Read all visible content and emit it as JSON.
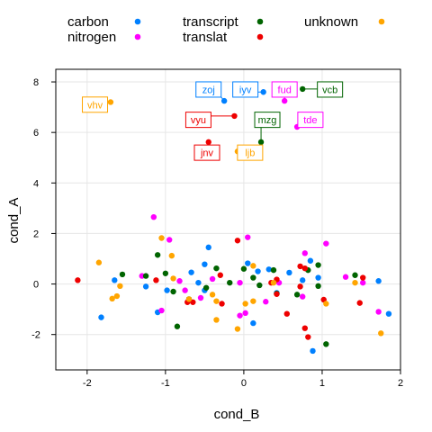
{
  "chart_data": {
    "type": "scatter",
    "xlabel": "cond_B",
    "ylabel": "cond_A",
    "xlim": [
      -2.4,
      2.0
    ],
    "ylim": [
      -3.4,
      8.5
    ],
    "x_ticks": [
      -2,
      -1,
      0,
      1,
      2
    ],
    "y_ticks": [
      -2,
      0,
      2,
      4,
      6,
      8
    ],
    "grid": true,
    "legend_position": "top",
    "series": [
      {
        "name": "carbon",
        "color": "#0080ff",
        "points": [
          [
            -1.82,
            -1.32
          ],
          [
            -1.25,
            -0.1
          ],
          [
            -1.1,
            -1.12
          ],
          [
            -0.98,
            -0.25
          ],
          [
            -0.67,
            0.46
          ],
          [
            -0.5,
            0.78
          ],
          [
            -0.45,
            1.45
          ],
          [
            -0.5,
            -0.25
          ],
          [
            -0.58,
            0.05
          ],
          [
            0.05,
            0.82
          ],
          [
            0.12,
            -1.55
          ],
          [
            0.18,
            0.5
          ],
          [
            0.32,
            0.58
          ],
          [
            0.42,
            -0.35
          ],
          [
            0.58,
            0.45
          ],
          [
            0.75,
            0.15
          ],
          [
            0.85,
            0.92
          ],
          [
            0.88,
            -2.65
          ],
          [
            0.95,
            0.25
          ],
          [
            1.72,
            0.12
          ],
          [
            1.85,
            -1.18
          ],
          [
            -1.65,
            0.15
          ],
          [
            -0.25,
            7.25
          ],
          [
            0.25,
            7.6
          ]
        ]
      },
      {
        "name": "nitrogen",
        "color": "#ff00ff",
        "points": [
          [
            -1.15,
            2.65
          ],
          [
            -1.3,
            0.32
          ],
          [
            -1.05,
            -1.05
          ],
          [
            -0.95,
            1.75
          ],
          [
            -0.82,
            0.12
          ],
          [
            -0.75,
            -0.25
          ],
          [
            -0.55,
            -0.55
          ],
          [
            -0.4,
            0.2
          ],
          [
            -0.05,
            -1.25
          ],
          [
            0.02,
            -1.15
          ],
          [
            0.05,
            1.85
          ],
          [
            -0.05,
            0.05
          ],
          [
            0.28,
            -0.7
          ],
          [
            0.45,
            0.05
          ],
          [
            0.78,
            1.22
          ],
          [
            0.75,
            -0.5
          ],
          [
            1.05,
            1.6
          ],
          [
            1.3,
            0.28
          ],
          [
            1.52,
            0.05
          ],
          [
            1.72,
            -1.1
          ],
          [
            0.52,
            7.25
          ],
          [
            0.68,
            6.22
          ]
        ]
      },
      {
        "name": "transcript",
        "color": "#006400",
        "points": [
          [
            -1.55,
            0.38
          ],
          [
            -1.25,
            0.32
          ],
          [
            -1.1,
            1.15
          ],
          [
            -1.0,
            0.42
          ],
          [
            -0.9,
            -0.3
          ],
          [
            -0.85,
            -1.68
          ],
          [
            -0.7,
            -0.6
          ],
          [
            -0.48,
            -0.15
          ],
          [
            -0.35,
            0.62
          ],
          [
            -0.18,
            0.05
          ],
          [
            0.0,
            0.6
          ],
          [
            0.12,
            0.25
          ],
          [
            0.2,
            -0.05
          ],
          [
            0.38,
            0.55
          ],
          [
            0.42,
            -0.38
          ],
          [
            0.68,
            -0.42
          ],
          [
            0.82,
            0.55
          ],
          [
            0.95,
            0.75
          ],
          [
            0.95,
            -0.08
          ],
          [
            1.05,
            -2.38
          ],
          [
            1.42,
            0.35
          ],
          [
            0.22,
            5.62
          ],
          [
            0.75,
            7.72
          ]
        ]
      },
      {
        "name": "translat",
        "color": "#ee0000",
        "points": [
          [
            -2.12,
            0.15
          ],
          [
            -1.12,
            0.15
          ],
          [
            -0.72,
            -0.72
          ],
          [
            -0.65,
            -0.72
          ],
          [
            -0.3,
            0.35
          ],
          [
            -0.28,
            -0.78
          ],
          [
            -0.08,
            1.72
          ],
          [
            0.35,
            0.05
          ],
          [
            0.42,
            0.18
          ],
          [
            0.42,
            -0.4
          ],
          [
            0.55,
            -1.18
          ],
          [
            0.72,
            -0.1
          ],
          [
            0.72,
            0.7
          ],
          [
            0.78,
            0.62
          ],
          [
            0.78,
            -1.75
          ],
          [
            0.82,
            -2.1
          ],
          [
            1.02,
            -0.62
          ],
          [
            1.48,
            -0.75
          ],
          [
            1.52,
            0.25
          ],
          [
            -0.45,
            5.62
          ],
          [
            -0.12,
            6.65
          ]
        ]
      },
      {
        "name": "unknown",
        "color": "#ffa500",
        "points": [
          [
            -1.85,
            0.85
          ],
          [
            -1.68,
            -0.58
          ],
          [
            -1.62,
            -0.48
          ],
          [
            -1.58,
            -0.08
          ],
          [
            -1.05,
            1.82
          ],
          [
            -0.92,
            1.12
          ],
          [
            -0.9,
            0.22
          ],
          [
            -0.7,
            -0.6
          ],
          [
            -0.4,
            -0.42
          ],
          [
            -0.35,
            -1.42
          ],
          [
            -0.35,
            -0.68
          ],
          [
            -0.08,
            -1.78
          ],
          [
            0.02,
            -0.78
          ],
          [
            0.12,
            0.72
          ],
          [
            0.12,
            -0.68
          ],
          [
            0.38,
            0.05
          ],
          [
            1.05,
            -0.78
          ],
          [
            1.42,
            0.05
          ],
          [
            1.75,
            -1.95
          ],
          [
            -1.7,
            7.2
          ],
          [
            -0.08,
            5.25
          ]
        ]
      }
    ],
    "annotations": [
      {
        "text": "vhv",
        "series": "unknown",
        "x": -1.7,
        "y": 7.2,
        "lx": -1.9,
        "ly": 7.1
      },
      {
        "text": "zoj",
        "series": "carbon",
        "x": -0.25,
        "y": 7.25,
        "lx": -0.45,
        "ly": 7.7
      },
      {
        "text": "iyv",
        "series": "carbon",
        "x": 0.25,
        "y": 7.6,
        "lx": 0.02,
        "ly": 7.7
      },
      {
        "text": "fud",
        "series": "nitrogen",
        "x": 0.52,
        "y": 7.25,
        "lx": 0.52,
        "ly": 7.7
      },
      {
        "text": "vcb",
        "series": "transcript",
        "x": 0.75,
        "y": 7.72,
        "lx": 1.1,
        "ly": 7.7
      },
      {
        "text": "vyu",
        "series": "translat",
        "x": -0.12,
        "y": 6.65,
        "lx": -0.58,
        "ly": 6.5
      },
      {
        "text": "mzg",
        "series": "transcript",
        "x": 0.22,
        "y": 5.62,
        "lx": 0.3,
        "ly": 6.5
      },
      {
        "text": "tde",
        "series": "nitrogen",
        "x": 0.68,
        "y": 6.22,
        "lx": 0.85,
        "ly": 6.5
      },
      {
        "text": "jnv",
        "series": "translat",
        "x": -0.45,
        "y": 5.62,
        "lx": -0.47,
        "ly": 5.2
      },
      {
        "text": "ljb",
        "series": "unknown",
        "x": -0.08,
        "y": 5.25,
        "lx": 0.08,
        "ly": 5.2
      }
    ]
  }
}
